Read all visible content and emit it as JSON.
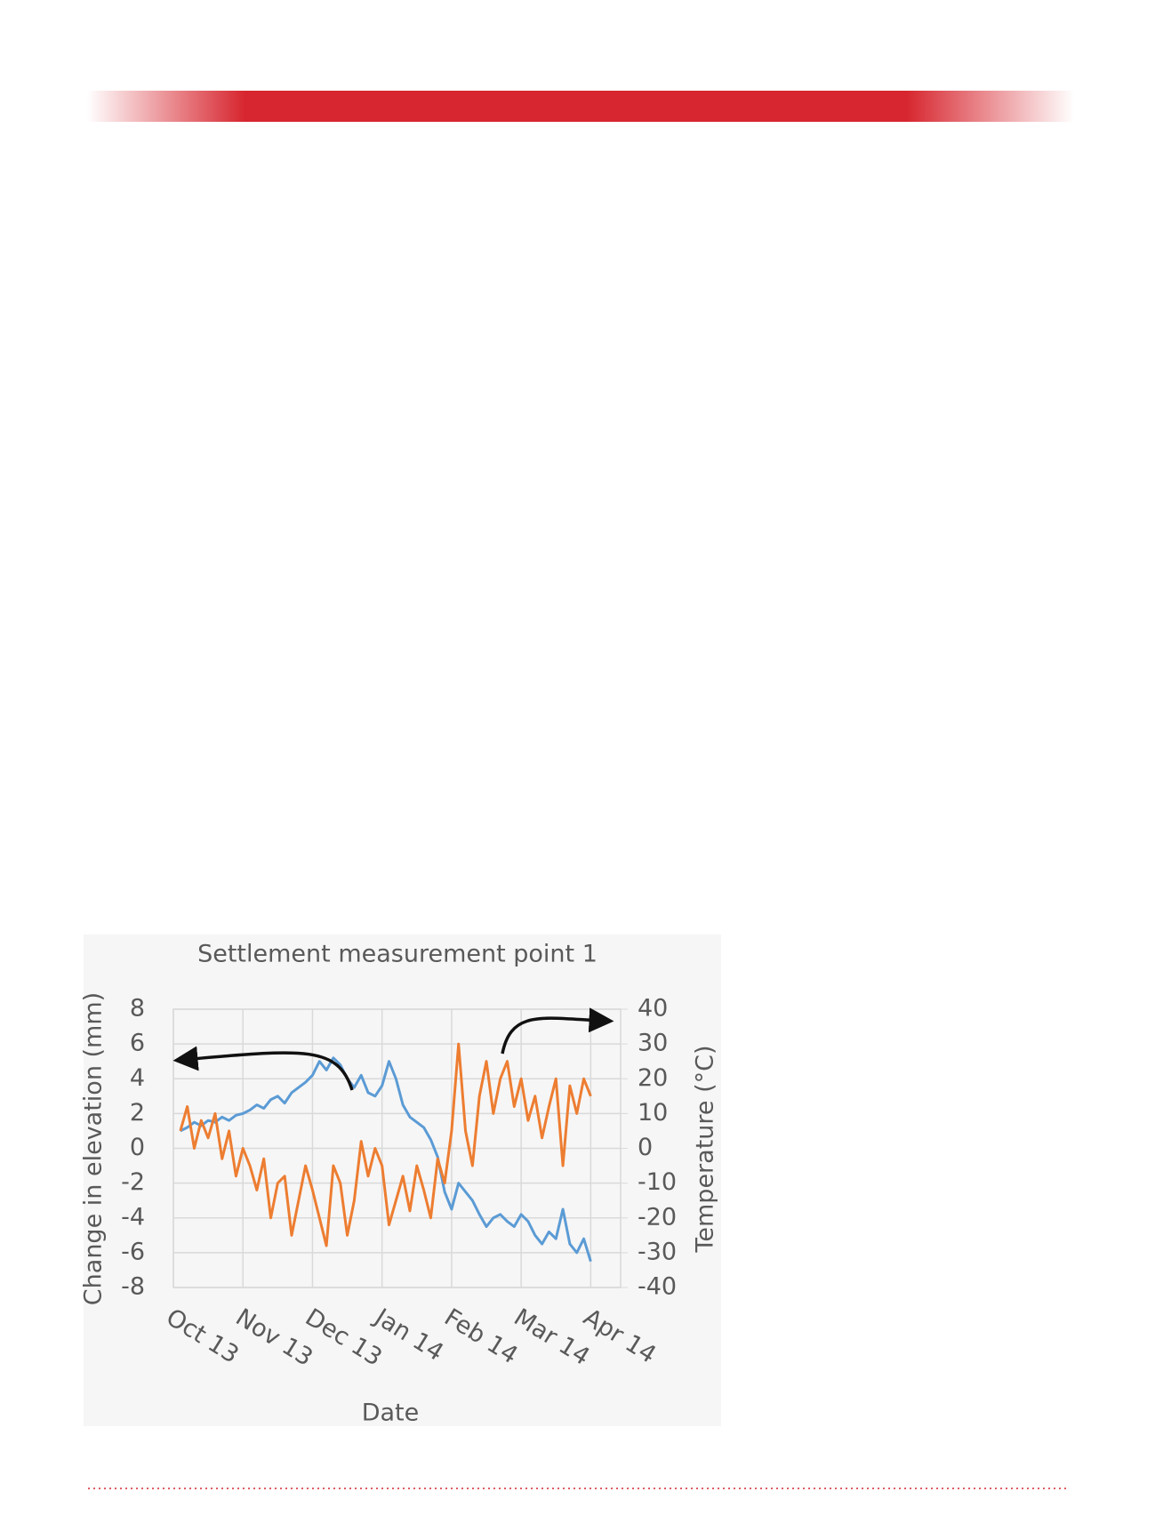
{
  "chart_data": {
    "type": "line",
    "title": "Settlement measurement point 1",
    "x_label": "Date",
    "y_label": "Change in elevation  (mm)",
    "y2_label": "Temperature (°C)",
    "x": [
      0.1,
      0.2,
      0.3,
      0.4,
      0.5,
      0.6,
      0.7,
      0.8,
      0.9,
      1.0,
      1.1,
      1.2,
      1.3,
      1.4,
      1.5,
      1.6,
      1.7,
      1.8,
      1.9,
      2.0,
      2.1,
      2.2,
      2.3,
      2.4,
      2.5,
      2.6,
      2.7,
      2.8,
      2.9,
      3.0,
      3.1,
      3.2,
      3.3,
      3.4,
      3.5,
      3.6,
      3.7,
      3.8,
      3.9,
      4.0,
      4.1,
      4.2,
      4.3,
      4.4,
      4.5,
      4.6,
      4.7,
      4.8,
      4.9,
      5.0,
      5.1,
      5.2,
      5.3,
      5.4,
      5.5,
      5.6,
      5.7,
      5.8,
      5.9,
      6.0
    ],
    "xlim": [
      0,
      6.43
    ],
    "xticks": [
      {
        "value": 0,
        "label": "Oct 13"
      },
      {
        "value": 1,
        "label": "Nov 13"
      },
      {
        "value": 2,
        "label": "Dec 13"
      },
      {
        "value": 3,
        "label": "Jan 14"
      },
      {
        "value": 4,
        "label": "Feb 14"
      },
      {
        "value": 5,
        "label": "Mar 14"
      },
      {
        "value": 6,
        "label": "Apr 14"
      }
    ],
    "ylim": [
      -8,
      8
    ],
    "yticks": [
      -8,
      -6,
      -4,
      -2,
      0,
      2,
      4,
      6,
      8
    ],
    "y2lim": [
      -40,
      40
    ],
    "y2ticks": [
      -40,
      -30,
      -20,
      -10,
      0,
      10,
      20,
      30,
      40
    ],
    "grid": true,
    "series": [
      {
        "color": "#5b9bd5",
        "values": [
          1,
          1.2,
          1.5,
          1.3,
          1.6,
          1.5,
          1.8,
          1.6,
          1.9,
          2.0,
          2.2,
          2.5,
          2.3,
          2.8,
          3.0,
          2.6,
          3.2,
          3.5,
          3.8,
          4.2,
          5.0,
          4.5,
          5.2,
          4.8,
          4.0,
          3.5,
          4.2,
          3.2,
          3.0,
          3.6,
          5.0,
          4.0,
          2.5,
          1.8,
          1.5,
          1.2,
          0.5,
          -0.5,
          -2.5,
          -3.5,
          -2.0,
          -2.5,
          -3.0,
          -3.8,
          -4.5,
          -4.0,
          -3.8,
          -4.2,
          -4.5,
          -3.8,
          -4.2,
          -5.0,
          -5.5,
          -4.8,
          -5.2,
          -3.5,
          -5.5,
          -6.0,
          -5.2,
          -6.5
        ]
      },
      {
        "color": "#ed7d31",
        "axis": "y2",
        "values": [
          5,
          12,
          0,
          8,
          3,
          10,
          -3,
          5,
          -8,
          0,
          -5,
          -12,
          -3,
          -20,
          -10,
          -8,
          -25,
          -15,
          -5,
          -12,
          -20,
          -28,
          -5,
          -10,
          -25,
          -15,
          2,
          -8,
          0,
          -5,
          -22,
          -15,
          -8,
          -18,
          -5,
          -12,
          -20,
          -3,
          -10,
          5,
          30,
          5,
          -5,
          15,
          25,
          10,
          20,
          25,
          12,
          20,
          8,
          15,
          3,
          12,
          20,
          -5,
          18,
          10,
          20,
          15
        ]
      }
    ]
  }
}
